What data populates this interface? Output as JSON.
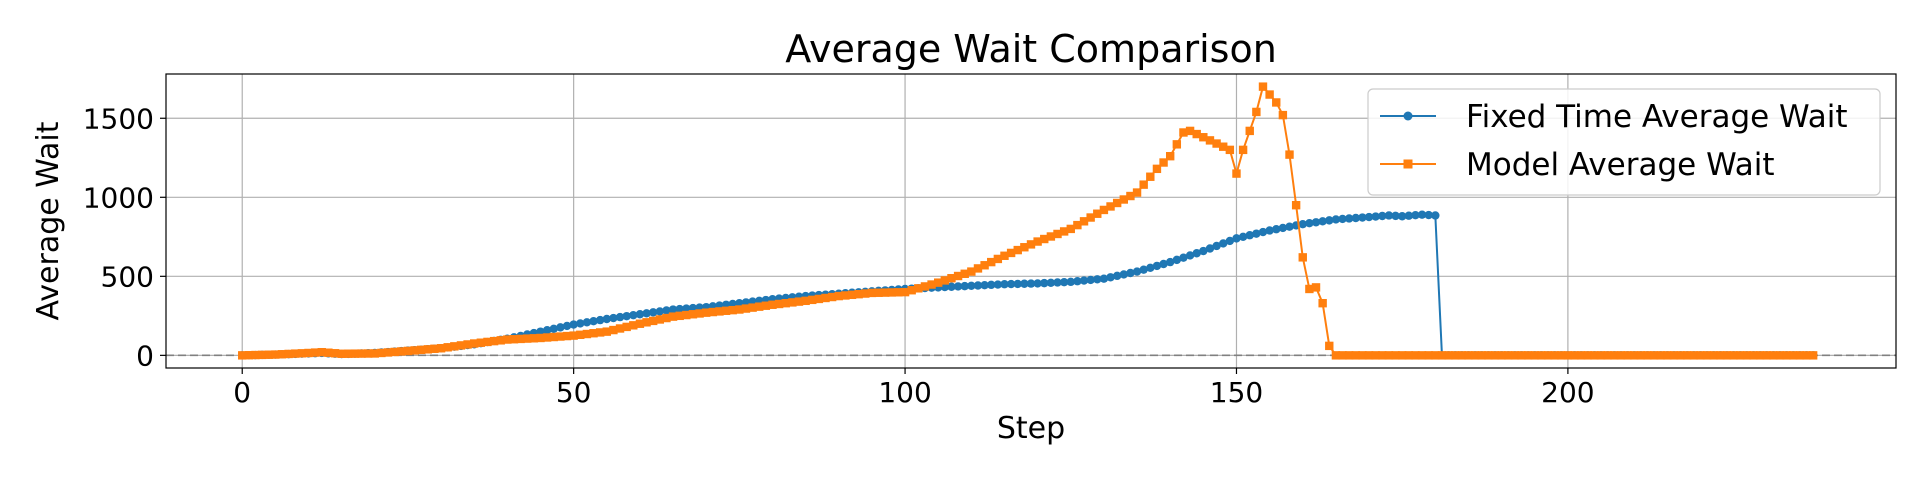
{
  "chart_data": {
    "type": "line",
    "title": "Average Wait Comparison",
    "xlabel": "Step",
    "ylabel": "Average Wait",
    "xlim": [
      -11.5,
      249.5
    ],
    "ylim": [
      -80,
      1780
    ],
    "xticks": [
      0,
      50,
      100,
      150,
      200
    ],
    "yticks": [
      0,
      500,
      1000,
      1500
    ],
    "grid": true,
    "legend_position": "top-right",
    "reference_line": {
      "y": 0,
      "style": "dashed",
      "color": "#808080"
    },
    "series": [
      {
        "name": "Fixed Time Average Wait",
        "color": "#1f77b4",
        "marker": "circle",
        "x_start": 0,
        "x_step": 1,
        "anchors": [
          [
            0,
            0
          ],
          [
            5,
            5
          ],
          [
            10,
            12
          ],
          [
            12,
            15
          ],
          [
            15,
            8
          ],
          [
            20,
            15
          ],
          [
            25,
            30
          ],
          [
            30,
            45
          ],
          [
            35,
            70
          ],
          [
            40,
            105
          ],
          [
            45,
            150
          ],
          [
            50,
            195
          ],
          [
            55,
            230
          ],
          [
            60,
            260
          ],
          [
            65,
            290
          ],
          [
            70,
            305
          ],
          [
            75,
            330
          ],
          [
            80,
            355
          ],
          [
            85,
            375
          ],
          [
            90,
            390
          ],
          [
            95,
            405
          ],
          [
            100,
            420
          ],
          [
            105,
            430
          ],
          [
            110,
            440
          ],
          [
            115,
            450
          ],
          [
            120,
            455
          ],
          [
            125,
            465
          ],
          [
            130,
            485
          ],
          [
            135,
            530
          ],
          [
            140,
            590
          ],
          [
            145,
            660
          ],
          [
            150,
            740
          ],
          [
            155,
            790
          ],
          [
            160,
            830
          ],
          [
            165,
            860
          ],
          [
            170,
            875
          ],
          [
            173,
            885
          ],
          [
            175,
            880
          ],
          [
            178,
            890
          ],
          [
            180,
            885
          ],
          [
            181,
            0
          ],
          [
            237,
            0
          ]
        ]
      },
      {
        "name": "Model Average Wait",
        "color": "#ff7f0e",
        "marker": "square",
        "x_start": 0,
        "x_step": 1,
        "anchors": [
          [
            0,
            0
          ],
          [
            5,
            5
          ],
          [
            10,
            15
          ],
          [
            12,
            20
          ],
          [
            15,
            10
          ],
          [
            20,
            12
          ],
          [
            25,
            28
          ],
          [
            30,
            45
          ],
          [
            35,
            75
          ],
          [
            40,
            100
          ],
          [
            45,
            110
          ],
          [
            50,
            125
          ],
          [
            55,
            150
          ],
          [
            60,
            200
          ],
          [
            65,
            245
          ],
          [
            70,
            270
          ],
          [
            75,
            290
          ],
          [
            80,
            320
          ],
          [
            85,
            345
          ],
          [
            90,
            375
          ],
          [
            95,
            395
          ],
          [
            100,
            400
          ],
          [
            105,
            460
          ],
          [
            110,
            530
          ],
          [
            115,
            630
          ],
          [
            120,
            720
          ],
          [
            125,
            800
          ],
          [
            130,
            920
          ],
          [
            135,
            1030
          ],
          [
            138,
            1180
          ],
          [
            140,
            1260
          ],
          [
            142,
            1410
          ],
          [
            143,
            1420
          ],
          [
            145,
            1380
          ],
          [
            147,
            1340
          ],
          [
            149,
            1300
          ],
          [
            150,
            1150
          ],
          [
            151,
            1300
          ],
          [
            152,
            1420
          ],
          [
            153,
            1540
          ],
          [
            154,
            1700
          ],
          [
            155,
            1650
          ],
          [
            156,
            1600
          ],
          [
            157,
            1520
          ],
          [
            158,
            1270
          ],
          [
            159,
            950
          ],
          [
            160,
            620
          ],
          [
            161,
            420
          ],
          [
            162,
            430
          ],
          [
            163,
            330
          ],
          [
            164,
            60
          ],
          [
            165,
            0
          ],
          [
            237,
            0
          ]
        ]
      }
    ]
  }
}
